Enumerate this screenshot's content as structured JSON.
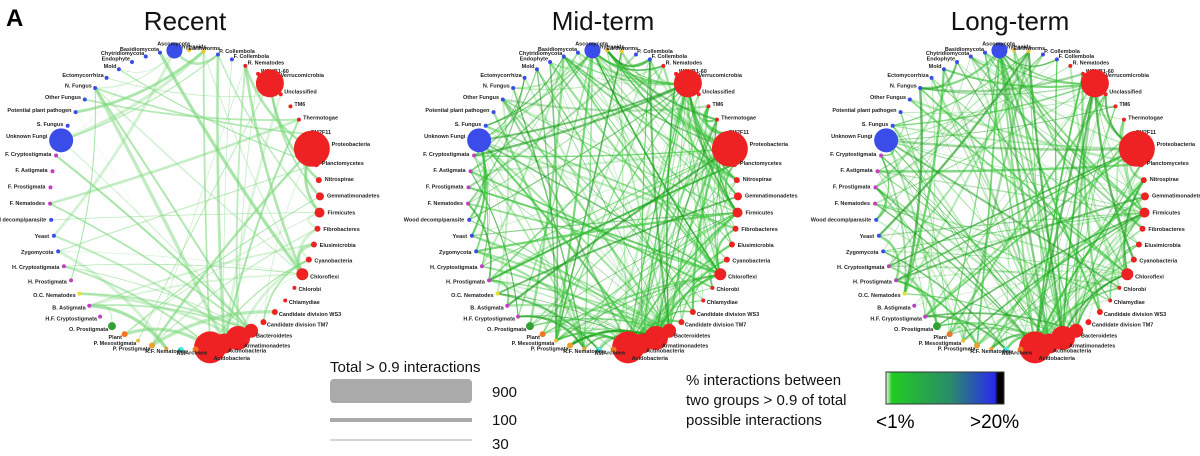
{
  "figure_label": "A",
  "panels": [
    {
      "title": "Recent"
    },
    {
      "title": "Mid-term"
    },
    {
      "title": "Long-term"
    }
  ],
  "nodes": [
    {
      "label": "Enchytraeids",
      "color": "#f2c230",
      "size": 2
    },
    {
      "label": "Earthworms",
      "color": "#f2c230",
      "size": 2
    },
    {
      "label": "P. Collembola",
      "color": "#3a4de8",
      "size": 2
    },
    {
      "label": "F. Collembola",
      "color": "#3a4de8",
      "size": 2
    },
    {
      "label": "R. Nematodes",
      "color": "#ee2222",
      "size": 2
    },
    {
      "label": "WCHB1-60",
      "color": "#ee2222",
      "size": 2
    },
    {
      "label": "Verrucomicrobia",
      "color": "#ee2222",
      "size": 14
    },
    {
      "label": "Unclassified",
      "color": "#ee2222",
      "size": 2
    },
    {
      "label": "TM6",
      "color": "#ee2222",
      "size": 2
    },
    {
      "label": "Thermotogae",
      "color": "#ee2222",
      "size": 2
    },
    {
      "label": "SM2F11",
      "color": "#ee2222",
      "size": 2
    },
    {
      "label": "Proteobacteria",
      "color": "#ee2222",
      "size": 18
    },
    {
      "label": "Planctomycetes",
      "color": "#ee2222",
      "size": 3
    },
    {
      "label": "Nitrospirae",
      "color": "#ee2222",
      "size": 3
    },
    {
      "label": "Gemmatimonadetes",
      "color": "#ee2222",
      "size": 4
    },
    {
      "label": "Firmicutes",
      "color": "#ee2222",
      "size": 5
    },
    {
      "label": "Fibrobacteres",
      "color": "#ee2222",
      "size": 3
    },
    {
      "label": "Elusimicrobia",
      "color": "#ee2222",
      "size": 3
    },
    {
      "label": "Cyanobacteria",
      "color": "#ee2222",
      "size": 3
    },
    {
      "label": "Chloroflexi",
      "color": "#ee2222",
      "size": 6
    },
    {
      "label": "Chlorobi",
      "color": "#ee2222",
      "size": 2
    },
    {
      "label": "Chlamydiae",
      "color": "#ee2222",
      "size": 2
    },
    {
      "label": "Candidate division WS3",
      "color": "#ee2222",
      "size": 3
    },
    {
      "label": "Candidate division TM7",
      "color": "#ee2222",
      "size": 3
    },
    {
      "label": "Bacteroidetes",
      "color": "#ee2222",
      "size": 7
    },
    {
      "label": "Armatimonadetes",
      "color": "#ee2222",
      "size": 12
    },
    {
      "label": "Actinobacteria",
      "color": "#ee2222",
      "size": 10
    },
    {
      "label": "Acidobacteria",
      "color": "#ee2222",
      "size": 16
    },
    {
      "label": "Archaea",
      "color": "#ee7722",
      "size": 3
    },
    {
      "label": "AM",
      "color": "#4de8e0",
      "size": 3
    },
    {
      "label": "R.F. Nematodes",
      "color": "#e8a030",
      "size": 2
    },
    {
      "label": "P. Prostigmata",
      "color": "#e8a030",
      "size": 3
    },
    {
      "label": "P. Mesostigmata",
      "color": "#e8c030",
      "size": 2
    },
    {
      "label": "Plant",
      "color": "#ee7722",
      "size": 3
    },
    {
      "label": "O. Prostigmata",
      "color": "#33a033",
      "size": 4
    },
    {
      "label": "H.F. Cryptostigmata",
      "color": "#c040c0",
      "size": 2
    },
    {
      "label": "B. Astigmata",
      "color": "#c040c0",
      "size": 2
    },
    {
      "label": "O.C. Nematodes",
      "color": "#e8e030",
      "size": 2
    },
    {
      "label": "H. Prostigmata",
      "color": "#c040c0",
      "size": 2
    },
    {
      "label": "H. Cryptostigmata",
      "color": "#c040c0",
      "size": 2
    },
    {
      "label": "Zygomycota",
      "color": "#3a4de8",
      "size": 2
    },
    {
      "label": "Yeast",
      "color": "#3a4de8",
      "size": 2
    },
    {
      "label": "Wood decomp/parasite",
      "color": "#3a4de8",
      "size": 2
    },
    {
      "label": "F. Nematodes",
      "color": "#c040c0",
      "size": 2
    },
    {
      "label": "F. Prostigmata",
      "color": "#c040c0",
      "size": 2
    },
    {
      "label": "F. Astigmata",
      "color": "#c040c0",
      "size": 2
    },
    {
      "label": "F. Cryptostigmata",
      "color": "#c040c0",
      "size": 2
    },
    {
      "label": "Unknown Fungi",
      "color": "#3a4de8",
      "size": 12
    },
    {
      "label": "S. Fungus",
      "color": "#3a4de8",
      "size": 2
    },
    {
      "label": "Potential plant pathogen",
      "color": "#3a4de8",
      "size": 2
    },
    {
      "label": "Other Fungus",
      "color": "#3a4de8",
      "size": 2
    },
    {
      "label": "N. Fungus",
      "color": "#3a4de8",
      "size": 2
    },
    {
      "label": "Ectomycorrhiza",
      "color": "#3a4de8",
      "size": 2
    },
    {
      "label": "Mold",
      "color": "#3a4de8",
      "size": 2
    },
    {
      "label": "Endophyte",
      "color": "#3a4de8",
      "size": 2
    },
    {
      "label": "Chytridiomycota",
      "color": "#3a4de8",
      "size": 2
    },
    {
      "label": "Basidiomycota",
      "color": "#3a4de8",
      "size": 2
    },
    {
      "label": "Ascomycota",
      "color": "#3a4de8",
      "size": 8
    }
  ],
  "legend_width": {
    "title": "Total > 0.9 interactions",
    "items": [
      "900",
      "100",
      "30"
    ]
  },
  "legend_color": {
    "title_lines": [
      "% interactions between",
      "two groups > 0.9 of total",
      "possible interactions"
    ],
    "low": "<1%",
    "high": ">20%"
  }
}
